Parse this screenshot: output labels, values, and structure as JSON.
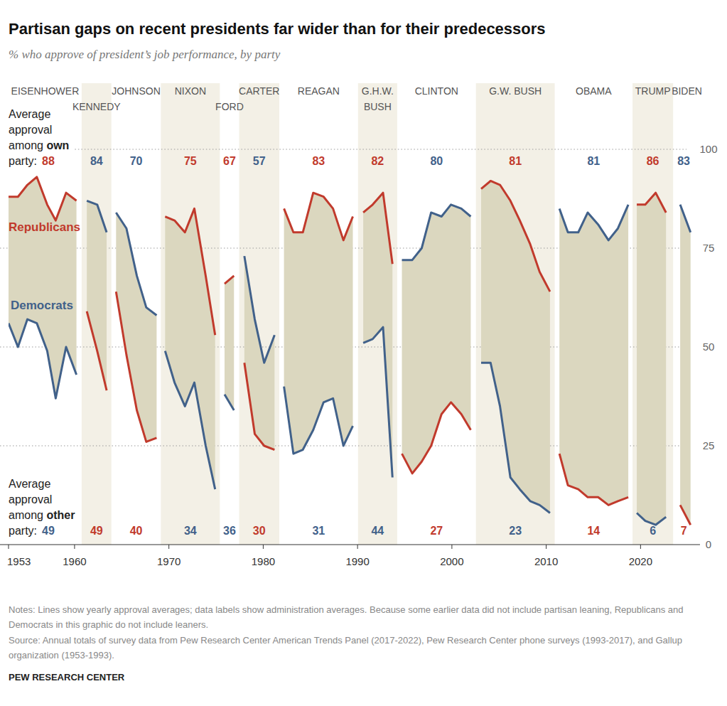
{
  "chart_data": {
    "type": "line",
    "title": "Partisan gaps on recent presidents far wider than for their predecessors",
    "subtitle": "% who approve of president’s job performance, by party",
    "x": [
      1953,
      1954,
      1955,
      1956,
      1957.1,
      1958,
      1959.1,
      1960.2,
      1960.75,
      1961.3,
      1962.4,
      1963.4,
      1963.9,
      1964.4,
      1965.5,
      1966.6,
      1967.6,
      1968.7,
      1969.15,
      1969.6,
      1970.6,
      1971.7,
      1972.7,
      1973.9,
      1974.9,
      1975.4,
      1975.9,
      1976.9,
      1977.45,
      1978,
      1979.1,
      1980.1,
      1981.2,
      1981.7,
      1982.2,
      1983.2,
      1984.2,
      1985.3,
      1986.4,
      1987.4,
      1988.5,
      1989.5,
      1990.05,
      1990.6,
      1991.6,
      1992.7,
      1993.7,
      1994.2,
      1994.7,
      1995.8,
      1996.8,
      1997.8,
      1998.9,
      1999.9,
      2001,
      2002,
      2002.55,
      2003.1,
      2004.1,
      2005.1,
      2006.2,
      2007.2,
      2008.3,
      2009.3,
      2010.4,
      2010.9,
      2011.4,
      2012.3,
      2013.4,
      2014.4,
      2015.5,
      2016.6,
      2017.6,
      2018.7,
      2019.15,
      2019.6,
      2020.5,
      2021.6,
      2022.7,
      2023.45,
      2024.2,
      2025.3
    ],
    "xlim": [
      1953,
      2026
    ],
    "xticks": [
      1953,
      1960,
      1970,
      1980,
      1990,
      2000,
      2010,
      2020
    ],
    "ylim": [
      0,
      100
    ],
    "yticks": [
      0,
      25,
      50,
      75,
      100
    ],
    "grid": true,
    "series": [
      {
        "name": "Republicans",
        "color": "#c13a2c",
        "values": [
          88,
          88,
          91,
          93,
          86,
          82,
          89,
          87,
          null,
          59,
          49,
          39,
          null,
          64,
          48,
          34,
          26,
          27,
          null,
          83,
          82,
          79,
          85,
          68,
          53,
          null,
          66,
          68,
          null,
          46,
          28,
          25,
          24,
          null,
          85,
          79,
          79,
          89,
          88,
          85,
          77,
          83,
          null,
          84,
          86,
          89,
          71,
          null,
          23,
          18,
          21,
          25,
          33,
          36,
          33,
          29,
          null,
          90,
          92,
          91,
          87,
          82,
          76,
          69,
          64,
          null,
          23,
          15,
          14,
          12,
          12,
          10,
          11,
          12,
          null,
          86,
          86,
          89,
          84,
          null,
          10,
          5
        ]
      },
      {
        "name": "Democrats",
        "color": "#41618a",
        "values": [
          56,
          50,
          57,
          56,
          49,
          37,
          50,
          43,
          null,
          87,
          86,
          79,
          null,
          84,
          80,
          68,
          60,
          58,
          null,
          49,
          41,
          35,
          41,
          25,
          14,
          null,
          38,
          34,
          null,
          73,
          57,
          46,
          53,
          null,
          40,
          23,
          24,
          29,
          36,
          37,
          25,
          30,
          null,
          51,
          52,
          55,
          17,
          null,
          72,
          72,
          75,
          84,
          83,
          86,
          85,
          83,
          null,
          46,
          46,
          35,
          17,
          14,
          11,
          10,
          8,
          null,
          85,
          79,
          79,
          84,
          81,
          77,
          80,
          86,
          null,
          8,
          6,
          5,
          7,
          null,
          86,
          79
        ]
      }
    ],
    "presidents": [
      {
        "name": "EISENHOWER",
        "party": "Republicans",
        "start": 1953,
        "end": 1960.75,
        "own_average": 88,
        "other_average": 49
      },
      {
        "name": "KENNEDY",
        "party": "Democrats",
        "start": 1960.75,
        "end": 1963.9,
        "own_average": 84,
        "other_average": 49
      },
      {
        "name": "JOHNSON",
        "party": "Democrats",
        "start": 1963.9,
        "end": 1969.15,
        "own_average": 70,
        "other_average": 40
      },
      {
        "name": "NIXON",
        "party": "Republicans",
        "start": 1969.15,
        "end": 1975.4,
        "own_average": 75,
        "other_average": 34
      },
      {
        "name": "FORD",
        "party": "Republicans",
        "start": 1975.4,
        "end": 1977.45,
        "own_average": 67,
        "other_average": 36
      },
      {
        "name": "CARTER",
        "party": "Democrats",
        "start": 1977.45,
        "end": 1981.7,
        "own_average": 57,
        "other_average": 30
      },
      {
        "name": "REAGAN",
        "party": "Republicans",
        "start": 1981.7,
        "end": 1990.05,
        "own_average": 83,
        "other_average": 31
      },
      {
        "name": "G.H.W. BUSH",
        "party": "Republicans",
        "start": 1990.05,
        "end": 1994.2,
        "own_average": 82,
        "other_average": 44
      },
      {
        "name": "CLINTON",
        "party": "Democrats",
        "start": 1994.2,
        "end": 2002.55,
        "own_average": 80,
        "other_average": 27
      },
      {
        "name": "G.W. BUSH",
        "party": "Republicans",
        "start": 2002.55,
        "end": 2010.9,
        "own_average": 81,
        "other_average": 23
      },
      {
        "name": "OBAMA",
        "party": "Democrats",
        "start": 2010.9,
        "end": 2019.15,
        "own_average": 81,
        "other_average": 14
      },
      {
        "name": "TRUMP",
        "party": "Republicans",
        "start": 2019.15,
        "end": 2023.45,
        "own_average": 86,
        "other_average": 6
      },
      {
        "name": "BIDEN",
        "party": "Democrats",
        "start": 2023.45,
        "end": 2025.7,
        "own_average": 83,
        "other_average": 7
      }
    ],
    "annotations": {
      "own_party": "Average approval among own party:",
      "other_party": "Average approval among other party:"
    },
    "notes": "Notes: Lines show yearly approval averages; data labels show administration averages. Because some earlier data did not include partisan leaning, Republicans and Democrats in this graphic do not include leaners.",
    "source": "Source: Annual totals of survey data from Pew Research Center American Trends Panel (2017-2022), Pew Research Center phone surveys (1993-2017), and Gallup organization (1953-1993).",
    "credit": "PEW RESEARCH CENTER"
  }
}
